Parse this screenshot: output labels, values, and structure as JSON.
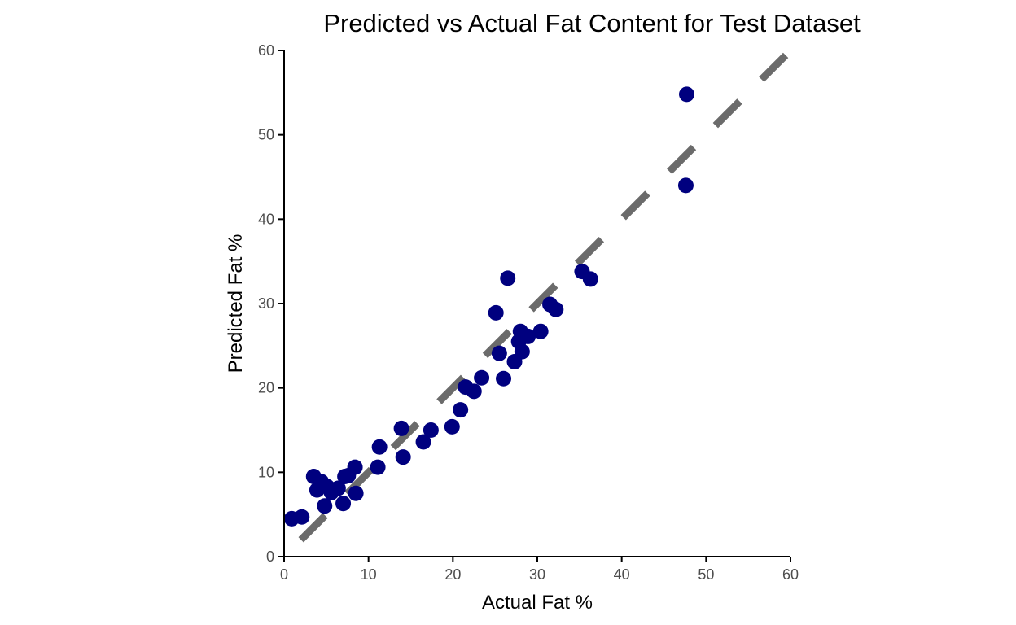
{
  "chart_data": {
    "type": "scatter",
    "title": "Predicted vs Actual Fat Content for Test Dataset",
    "xlabel": "Actual Fat %",
    "ylabel": "Predicted Fat %",
    "xlim": [
      0,
      60
    ],
    "ylim": [
      0,
      60
    ],
    "xticks": [
      0,
      10,
      20,
      30,
      40,
      50,
      60
    ],
    "yticks": [
      0,
      10,
      20,
      30,
      40,
      50,
      60
    ],
    "grid": false,
    "legend": "none",
    "point_color": "#00007f",
    "reference_line": {
      "style": "dashed",
      "color": "#6b6b6b",
      "from": [
        2,
        2
      ],
      "to": [
        60,
        60
      ]
    },
    "points": [
      {
        "x": 0.9,
        "y": 4.5
      },
      {
        "x": 2.1,
        "y": 4.7
      },
      {
        "x": 3.5,
        "y": 9.5
      },
      {
        "x": 3.9,
        "y": 7.9
      },
      {
        "x": 4.4,
        "y": 8.9
      },
      {
        "x": 4.8,
        "y": 6.0
      },
      {
        "x": 5.1,
        "y": 8.3
      },
      {
        "x": 5.6,
        "y": 7.6
      },
      {
        "x": 6.4,
        "y": 8.1
      },
      {
        "x": 7.0,
        "y": 6.3
      },
      {
        "x": 7.2,
        "y": 9.5
      },
      {
        "x": 7.6,
        "y": 9.6
      },
      {
        "x": 8.4,
        "y": 10.6
      },
      {
        "x": 8.5,
        "y": 7.5
      },
      {
        "x": 11.1,
        "y": 10.6
      },
      {
        "x": 11.3,
        "y": 13.0
      },
      {
        "x": 13.9,
        "y": 15.2
      },
      {
        "x": 14.1,
        "y": 11.8
      },
      {
        "x": 16.5,
        "y": 13.6
      },
      {
        "x": 17.4,
        "y": 15.0
      },
      {
        "x": 19.9,
        "y": 15.4
      },
      {
        "x": 20.9,
        "y": 17.4
      },
      {
        "x": 21.5,
        "y": 20.1
      },
      {
        "x": 22.5,
        "y": 19.6
      },
      {
        "x": 23.4,
        "y": 21.2
      },
      {
        "x": 25.1,
        "y": 28.9
      },
      {
        "x": 25.5,
        "y": 24.1
      },
      {
        "x": 26.0,
        "y": 21.1
      },
      {
        "x": 26.5,
        "y": 33.0
      },
      {
        "x": 27.3,
        "y": 23.1
      },
      {
        "x": 27.8,
        "y": 25.5
      },
      {
        "x": 28.2,
        "y": 24.3
      },
      {
        "x": 28.0,
        "y": 26.7
      },
      {
        "x": 28.9,
        "y": 26.1
      },
      {
        "x": 30.4,
        "y": 26.7
      },
      {
        "x": 31.5,
        "y": 29.9
      },
      {
        "x": 32.2,
        "y": 29.3
      },
      {
        "x": 35.3,
        "y": 33.8
      },
      {
        "x": 36.3,
        "y": 32.9
      },
      {
        "x": 47.6,
        "y": 44.0
      },
      {
        "x": 47.7,
        "y": 54.8
      }
    ]
  }
}
